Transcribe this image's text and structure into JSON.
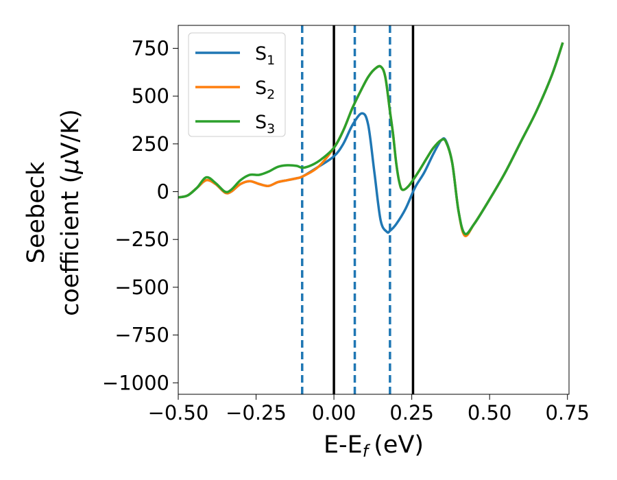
{
  "chart_data": {
    "type": "line",
    "xlabel": "E-E",
    "xlabel_sub": "f",
    "xlabel_unit": "(eV)",
    "ylabel_line1": "Seebeck",
    "ylabel_line2": "coefficient  (",
    "ylabel_mu": "μ",
    "ylabel_unit": "V/K)",
    "xlim": [
      -0.5,
      0.755
    ],
    "ylim": [
      -1060,
      870
    ],
    "xticks": [
      -0.5,
      -0.25,
      0.0,
      0.25,
      0.5,
      0.75
    ],
    "xtick_labels": [
      "−0.50",
      "−0.25",
      "0.00",
      "0.25",
      "0.50",
      "0.75"
    ],
    "yticks": [
      750,
      500,
      250,
      0,
      -250,
      -500,
      -750,
      -1000
    ],
    "ytick_labels": [
      "750",
      "500",
      "250",
      "0",
      "−250",
      "−500",
      "−750",
      "−1000"
    ],
    "grid": false,
    "legend_position": "top-left",
    "vlines_dashed": [
      -0.102,
      0.067,
      0.18
    ],
    "vlines_solid": [
      0.0,
      0.254
    ],
    "vline_dashed_color": "#1f77b4",
    "vline_solid_color": "#000000",
    "series": [
      {
        "name": "S",
        "subscript": "1",
        "color": "#1f77b4",
        "x": [
          -0.5,
          -0.47,
          -0.44,
          -0.41,
          -0.38,
          -0.35,
          -0.33,
          -0.3,
          -0.27,
          -0.24,
          -0.21,
          -0.18,
          -0.15,
          -0.12,
          -0.1,
          -0.05,
          0.0,
          0.03,
          0.06,
          0.09,
          0.11,
          0.13,
          0.15,
          0.17,
          0.18,
          0.2,
          0.23,
          0.26,
          0.29,
          0.32,
          0.345,
          0.36,
          0.38,
          0.4,
          0.42,
          0.45,
          0.5,
          0.55,
          0.6,
          0.65,
          0.7,
          0.735
        ],
        "y": [
          -30,
          -20,
          20,
          60,
          40,
          -5,
          0,
          40,
          55,
          40,
          30,
          50,
          60,
          70,
          80,
          130,
          185,
          250,
          350,
          410,
          350,
          100,
          -150,
          -210,
          -205,
          -170,
          -90,
          20,
          100,
          200,
          270,
          265,
          150,
          -100,
          -220,
          -170,
          -40,
          100,
          260,
          420,
          610,
          780
        ]
      },
      {
        "name": "S",
        "subscript": "2",
        "color": "#ff7f0e",
        "x": [
          -0.5,
          -0.47,
          -0.44,
          -0.41,
          -0.38,
          -0.35,
          -0.33,
          -0.3,
          -0.27,
          -0.24,
          -0.21,
          -0.18,
          -0.15,
          -0.12,
          -0.1,
          -0.05,
          0.0,
          0.03,
          0.06,
          0.09,
          0.11,
          0.13,
          0.15,
          0.165,
          0.18,
          0.19,
          0.2,
          0.21,
          0.22,
          0.24,
          0.27,
          0.3,
          0.32,
          0.345,
          0.36,
          0.38,
          0.4,
          0.42,
          0.45,
          0.5,
          0.55,
          0.6,
          0.65,
          0.7,
          0.735
        ],
        "y": [
          -30,
          -20,
          20,
          60,
          40,
          -5,
          0,
          40,
          55,
          40,
          30,
          50,
          60,
          70,
          80,
          130,
          230,
          320,
          440,
          540,
          600,
          640,
          655,
          600,
          420,
          300,
          150,
          50,
          10,
          30,
          100,
          180,
          230,
          270,
          260,
          150,
          -100,
          -230,
          -170,
          -40,
          100,
          260,
          420,
          610,
          780
        ]
      },
      {
        "name": "S",
        "subscript": "3",
        "color": "#2ca02c",
        "x": [
          -0.5,
          -0.47,
          -0.44,
          -0.41,
          -0.38,
          -0.35,
          -0.33,
          -0.3,
          -0.27,
          -0.24,
          -0.21,
          -0.18,
          -0.15,
          -0.12,
          -0.1,
          -0.07,
          -0.04,
          0.0,
          0.03,
          0.06,
          0.09,
          0.11,
          0.13,
          0.15,
          0.165,
          0.18,
          0.19,
          0.2,
          0.21,
          0.22,
          0.24,
          0.27,
          0.3,
          0.32,
          0.345,
          0.36,
          0.38,
          0.4,
          0.42,
          0.45,
          0.5,
          0.55,
          0.6,
          0.65,
          0.7,
          0.735
        ],
        "y": [
          -30,
          -20,
          20,
          75,
          45,
          0,
          10,
          60,
          88,
          88,
          105,
          130,
          138,
          135,
          125,
          140,
          170,
          230,
          320,
          440,
          540,
          600,
          640,
          655,
          600,
          420,
          300,
          150,
          50,
          10,
          30,
          100,
          180,
          230,
          270,
          260,
          150,
          -100,
          -220,
          -170,
          -40,
          100,
          260,
          420,
          610,
          780
        ]
      }
    ]
  }
}
